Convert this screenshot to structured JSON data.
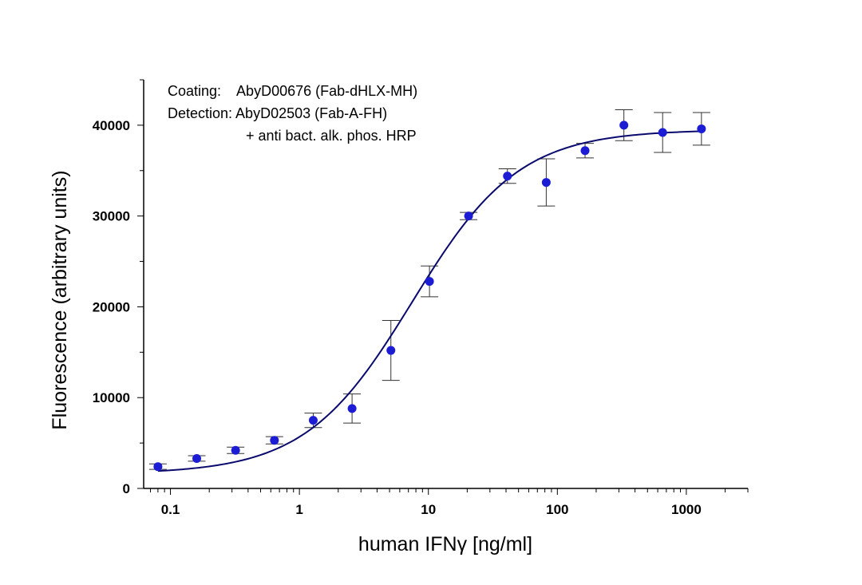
{
  "chart_data": {
    "type": "scatter",
    "xlabel": "human IFNγ [ng/ml]",
    "ylabel": "Fluorescence (arbitrary units)",
    "xscale": "log",
    "xlim": [
      0.062,
      3000
    ],
    "ylim": [
      0,
      45000
    ],
    "x_ticks": [
      0.1,
      1,
      10,
      100,
      1000
    ],
    "x_tick_labels": [
      "0.1",
      "1",
      "10",
      "100",
      "1000"
    ],
    "y_ticks": [
      0,
      10000,
      20000,
      30000,
      40000
    ],
    "y_tick_labels": [
      "0",
      "10000",
      "20000",
      "30000",
      "40000"
    ],
    "annotations": [
      "Coating:    AbyD00676 (Fab-dHLX-MH)",
      "Detection: AbyD02503 (Fab-A-FH)",
      "+ anti bact. alk. phos. HRP"
    ],
    "colors": {
      "marker": "#1c1cd4",
      "fit_line": "#0a0a6e",
      "error_bars": "#333333"
    },
    "series": [
      {
        "values": [
          {
            "x": 0.08,
            "y": 2400,
            "err": 300
          },
          {
            "x": 0.16,
            "y": 3300,
            "err": 300
          },
          {
            "x": 0.32,
            "y": 4200,
            "err": 350
          },
          {
            "x": 0.64,
            "y": 5300,
            "err": 400
          },
          {
            "x": 1.28,
            "y": 7500,
            "err": 800
          },
          {
            "x": 2.56,
            "y": 8800,
            "err": 1600
          },
          {
            "x": 5.12,
            "y": 15200,
            "err": 3300
          },
          {
            "x": 10.2,
            "y": 22800,
            "err": 1700
          },
          {
            "x": 20.5,
            "y": 30000,
            "err": 400
          },
          {
            "x": 41,
            "y": 34400,
            "err": 800
          },
          {
            "x": 82,
            "y": 33700,
            "err": 2600
          },
          {
            "x": 164,
            "y": 37200,
            "err": 800
          },
          {
            "x": 328,
            "y": 40000,
            "err": 1700
          },
          {
            "x": 655,
            "y": 39200,
            "err": 2200
          },
          {
            "x": 1310,
            "y": 39600,
            "err": 1800
          }
        ]
      }
    ],
    "fit": {
      "model": "4PL",
      "bottom": 1600,
      "top": 39500,
      "ec50": 7.5,
      "hill": 1.05,
      "x_range": [
        0.08,
        1310
      ]
    }
  }
}
